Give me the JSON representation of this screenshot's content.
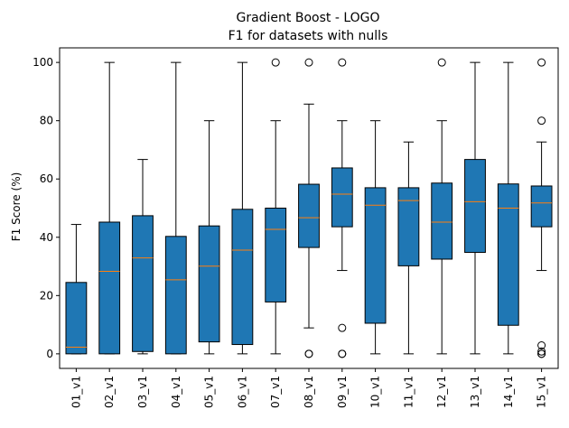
{
  "chart_data": {
    "type": "boxplot",
    "title": "Gradient Boost - LOGO",
    "subtitle": "F1 for datasets with nulls",
    "xlabel": "",
    "ylabel": "F1 Score (%)",
    "ylim": [
      -5,
      105
    ],
    "yticks": [
      0,
      20,
      40,
      60,
      80,
      100
    ],
    "grid": false,
    "categories": [
      "01_v1",
      "02_v1",
      "03_v1",
      "04_v1",
      "05_v1",
      "06_v1",
      "07_v1",
      "08_v1",
      "09_v1",
      "10_v1",
      "11_v1",
      "12_v1",
      "13_v1",
      "14_v1",
      "15_v1"
    ],
    "series": [
      {
        "whisker_low": 0,
        "q1": 0,
        "median": 2.3,
        "q3": 24.5,
        "whisker_high": 44.4,
        "outliers": []
      },
      {
        "whisker_low": 0,
        "q1": 0,
        "median": 28.3,
        "q3": 45.2,
        "whisker_high": 100,
        "outliers": []
      },
      {
        "whisker_low": 0,
        "q1": 0.8,
        "median": 32.9,
        "q3": 47.4,
        "whisker_high": 66.7,
        "outliers": []
      },
      {
        "whisker_low": 0,
        "q1": 0,
        "median": 25.4,
        "q3": 40.3,
        "whisker_high": 100,
        "outliers": []
      },
      {
        "whisker_low": 0,
        "q1": 4.1,
        "median": 30.1,
        "q3": 43.9,
        "whisker_high": 80,
        "outliers": []
      },
      {
        "whisker_low": 0,
        "q1": 3.2,
        "median": 35.6,
        "q3": 49.6,
        "whisker_high": 100,
        "outliers": []
      },
      {
        "whisker_low": 0,
        "q1": 17.8,
        "median": 42.7,
        "q3": 50.0,
        "whisker_high": 80,
        "outliers": [
          100
        ]
      },
      {
        "whisker_low": 8.9,
        "q1": 36.5,
        "median": 46.7,
        "q3": 58.2,
        "whisker_high": 85.7,
        "outliers": [
          100,
          0,
          0
        ]
      },
      {
        "whisker_low": 28.6,
        "q1": 43.6,
        "median": 54.8,
        "q3": 63.8,
        "whisker_high": 80,
        "outliers": [
          100,
          8.9,
          0,
          0
        ]
      },
      {
        "whisker_low": 0,
        "q1": 10.5,
        "median": 51.0,
        "q3": 57.0,
        "whisker_high": 80,
        "outliers": []
      },
      {
        "whisker_low": 0,
        "q1": 30.2,
        "median": 52.6,
        "q3": 57.0,
        "whisker_high": 72.7,
        "outliers": []
      },
      {
        "whisker_low": 0,
        "q1": 32.5,
        "median": 45.2,
        "q3": 58.6,
        "whisker_high": 80,
        "outliers": [
          100
        ]
      },
      {
        "whisker_low": 0,
        "q1": 34.8,
        "median": 52.2,
        "q3": 66.7,
        "whisker_high": 100,
        "outliers": []
      },
      {
        "whisker_low": 0,
        "q1": 9.8,
        "median": 50.0,
        "q3": 58.3,
        "whisker_high": 100,
        "outliers": []
      },
      {
        "whisker_low": 28.6,
        "q1": 43.6,
        "median": 51.8,
        "q3": 57.6,
        "whisker_high": 72.7,
        "outliers": [
          100,
          80,
          2.9,
          0.8,
          0,
          0
        ]
      }
    ],
    "colors": {
      "box_fill": "#1f77b4",
      "median": "#ff7f0e",
      "outline": "#000000",
      "background": "#ffffff"
    }
  }
}
